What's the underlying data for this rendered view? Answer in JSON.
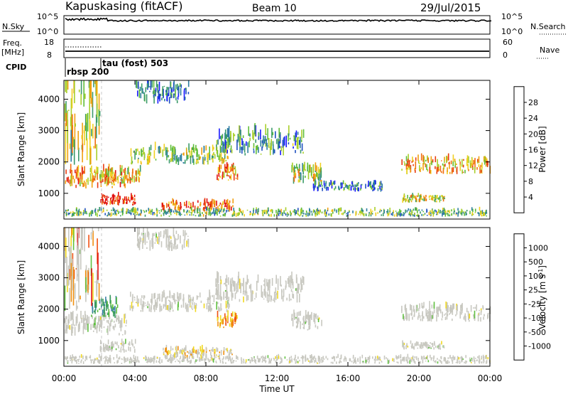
{
  "header": {
    "station": "Kapuskasing (fitACF)",
    "beam": "Beam 10",
    "date": "29/Jul/2015"
  },
  "strips": {
    "nsky_label": "N.Sky",
    "nsky_ticks": [
      "10^5",
      "10^0"
    ],
    "nsearch_label": "N.Search",
    "nsearch_ticks": [
      "10^5",
      "10^0"
    ],
    "freq_label": "Freq.",
    "freq_unit": "[MHz]",
    "freq_ticks": [
      "18",
      "8"
    ],
    "nave_label": "Nave",
    "nave_ticks": [
      "60",
      "0"
    ],
    "cpid_label": "CPID",
    "cpid_entries": [
      "rbsp 200",
      "tau (fost) 503"
    ]
  },
  "chart_data": [
    {
      "type": "heatmap",
      "panel": "power",
      "ylabel": "Slant Range [km]",
      "ylim": [
        180,
        4600
      ],
      "yticks": [
        "1000",
        "2000",
        "3000",
        "4000"
      ],
      "xlim_hours": [
        0,
        24
      ],
      "colorbar_label": "Power [dB]",
      "colorbar_ticks": [
        "4",
        "8",
        "12",
        "16",
        "20",
        "24",
        "28"
      ],
      "colorbar_colors": [
        "#1a1aff",
        "#1f4fc0",
        "#2e7fa0",
        "#3a9a6a",
        "#5fbd3a",
        "#a8cf2a",
        "#f0d020",
        "#f0a010",
        "#f07010",
        "#e83c10",
        "#e01010"
      ],
      "echo_regions": [
        {
          "t": [
            0.0,
            3.5
          ],
          "range_km": [
            1150,
            1700
          ],
          "level": 0.7
        },
        {
          "t": [
            2.0,
            4.3
          ],
          "range_km": [
            1300,
            1700
          ],
          "level": 0.6
        },
        {
          "t": [
            3.7,
            9.3
          ],
          "range_km": [
            1900,
            2400
          ],
          "level": 0.45
        },
        {
          "t": [
            8.5,
            13.5
          ],
          "range_km": [
            2200,
            2900
          ],
          "level": 0.3
        },
        {
          "t": [
            8.6,
            9.8
          ],
          "range_km": [
            1400,
            1800
          ],
          "level": 0.7
        },
        {
          "t": [
            12.8,
            14.5
          ],
          "range_km": [
            1300,
            1800
          ],
          "level": 0.5
        },
        {
          "t": [
            14.0,
            18.0
          ],
          "range_km": [
            1050,
            1300
          ],
          "level": 0.25
        },
        {
          "t": [
            19.0,
            24.0
          ],
          "range_km": [
            1600,
            2050
          ],
          "level": 0.65
        },
        {
          "t": [
            2.0,
            4.0
          ],
          "range_km": [
            600,
            900
          ],
          "level": 0.95
        },
        {
          "t": [
            5.5,
            9.5
          ],
          "range_km": [
            400,
            700
          ],
          "level": 0.85
        },
        {
          "t": [
            19.0,
            21.5
          ],
          "range_km": [
            700,
            900
          ],
          "level": 0.55
        },
        {
          "t": [
            0.0,
            24.0
          ],
          "range_km": [
            250,
            450
          ],
          "level": 0.4
        },
        {
          "t": [
            4.0,
            7.0
          ],
          "range_km": [
            3850,
            4400
          ],
          "level": 0.2
        },
        {
          "t": [
            0.0,
            2.0
          ],
          "range_km": [
            1900,
            4500
          ],
          "level": 0.5
        }
      ]
    },
    {
      "type": "heatmap",
      "panel": "velocity",
      "ylabel": "Slant Range [km]",
      "ylim": [
        180,
        4600
      ],
      "yticks": [
        "1000",
        "2000",
        "3000",
        "4000"
      ],
      "xlim_hours": [
        0,
        24
      ],
      "xticks": [
        "00:00",
        "04:00",
        "08:00",
        "12:00",
        "16:00",
        "20:00",
        "00:00"
      ],
      "xlabel": "Time UT",
      "colorbar_label": "Velocity [m s^-1]",
      "colorbar_ticks": [
        "1000",
        "500",
        "100",
        "25",
        "-25",
        "-100",
        "-500",
        "-1000"
      ],
      "colorbar_colors": [
        "#2040c0",
        "#3a80a8",
        "#3a9a60",
        "#60c040",
        "#c8c8c0",
        "#f0d820",
        "#f09010",
        "#f05010",
        "#e01010"
      ],
      "ground_scatter_color": "#c8c8c0",
      "echo_regions": [
        {
          "t": [
            0.0,
            3.5
          ],
          "range_km": [
            1150,
            1700
          ],
          "kind": "gs"
        },
        {
          "t": [
            3.7,
            9.3
          ],
          "range_km": [
            1900,
            2400
          ],
          "kind": "gs"
        },
        {
          "t": [
            8.5,
            13.5
          ],
          "range_km": [
            2200,
            2900
          ],
          "kind": "gs"
        },
        {
          "t": [
            12.8,
            14.5
          ],
          "range_km": [
            1300,
            1800
          ],
          "kind": "gs"
        },
        {
          "t": [
            19.0,
            24.0
          ],
          "range_km": [
            1600,
            2050
          ],
          "kind": "gs"
        },
        {
          "t": [
            2.0,
            4.0
          ],
          "range_km": [
            600,
            900
          ],
          "kind": "gs"
        },
        {
          "t": [
            5.5,
            9.5
          ],
          "range_km": [
            400,
            700
          ],
          "kind": "mix_neg"
        },
        {
          "t": [
            8.6,
            9.8
          ],
          "range_km": [
            1400,
            1800
          ],
          "kind": "neg"
        },
        {
          "t": [
            1.5,
            3.0
          ],
          "range_km": [
            1700,
            2200
          ],
          "kind": "pos"
        },
        {
          "t": [
            0.0,
            24.0
          ],
          "range_km": [
            250,
            450
          ],
          "kind": "gs"
        },
        {
          "t": [
            19.0,
            21.5
          ],
          "range_km": [
            700,
            900
          ],
          "kind": "gs"
        },
        {
          "t": [
            4.0,
            7.0
          ],
          "range_km": [
            3850,
            4400
          ],
          "kind": "gs"
        },
        {
          "t": [
            0.0,
            2.0
          ],
          "range_km": [
            1900,
            4500
          ],
          "kind": "mix"
        }
      ]
    }
  ]
}
